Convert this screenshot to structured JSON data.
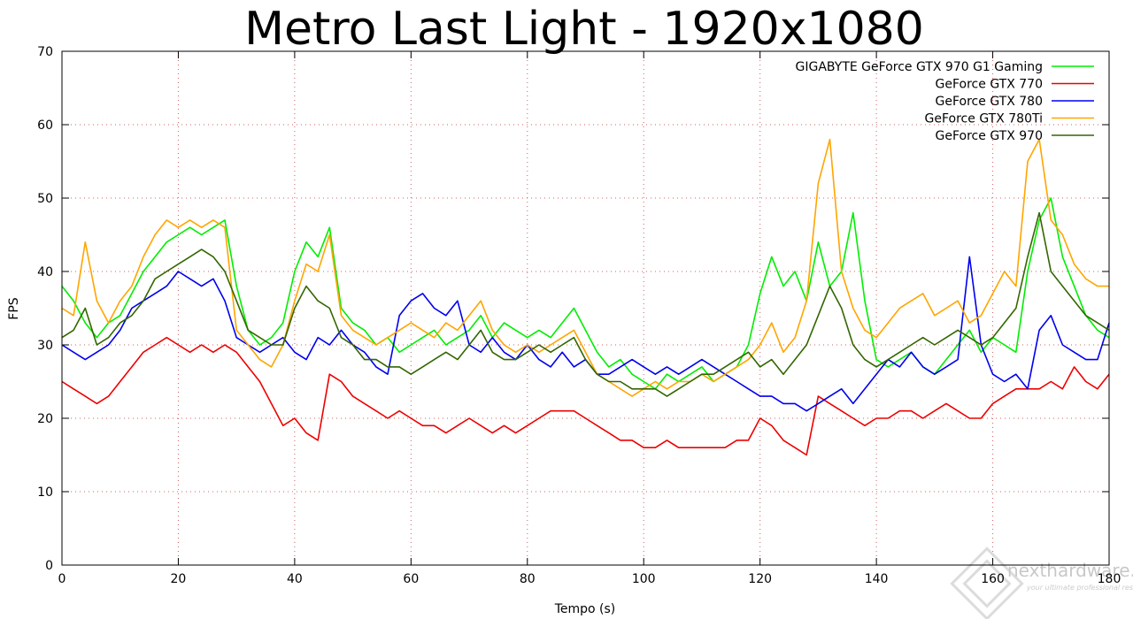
{
  "chart_data": {
    "type": "line",
    "title": "Metro Last Light - 1920x1080",
    "xlabel": "Tempo (s)",
    "ylabel": "FPS",
    "xlim": [
      0,
      180
    ],
    "ylim": [
      0,
      70
    ],
    "xticks": [
      0,
      20,
      40,
      60,
      80,
      100,
      120,
      140,
      160,
      180
    ],
    "yticks": [
      0,
      10,
      20,
      30,
      40,
      50,
      60,
      70
    ],
    "grid": true,
    "legend_position": "top-right",
    "series": [
      {
        "name": "GIGABYTE GeForce GTX 970 G1 Gaming",
        "color": "#00ee00",
        "x": [
          0,
          2,
          4,
          6,
          8,
          10,
          12,
          14,
          16,
          18,
          20,
          22,
          24,
          26,
          28,
          30,
          32,
          34,
          36,
          38,
          40,
          42,
          44,
          46,
          48,
          50,
          52,
          54,
          56,
          58,
          60,
          62,
          64,
          66,
          68,
          70,
          72,
          74,
          76,
          78,
          80,
          82,
          84,
          86,
          88,
          90,
          92,
          94,
          96,
          98,
          100,
          102,
          104,
          106,
          108,
          110,
          112,
          114,
          116,
          118,
          120,
          122,
          124,
          126,
          128,
          130,
          132,
          134,
          136,
          138,
          140,
          142,
          144,
          146,
          148,
          150,
          152,
          154,
          156,
          158,
          160,
          162,
          164,
          166,
          168,
          170,
          172,
          174,
          176,
          178,
          180
        ],
        "y": [
          38,
          36,
          33,
          31,
          33,
          34,
          37,
          40,
          42,
          44,
          45,
          46,
          45,
          46,
          47,
          38,
          32,
          30,
          31,
          33,
          40,
          44,
          42,
          46,
          35,
          33,
          32,
          30,
          31,
          29,
          30,
          31,
          32,
          30,
          31,
          32,
          34,
          31,
          33,
          32,
          31,
          32,
          31,
          33,
          35,
          32,
          29,
          27,
          28,
          26,
          25,
          24,
          26,
          25,
          26,
          27,
          25,
          26,
          27,
          30,
          37,
          42,
          38,
          40,
          36,
          44,
          38,
          40,
          48,
          36,
          28,
          27,
          28,
          29,
          27,
          26,
          28,
          30,
          32,
          29,
          31,
          30,
          29,
          40,
          47,
          50,
          42,
          38,
          34,
          32,
          31
        ]
      },
      {
        "name": "GeForce GTX 770",
        "color": "#ee0000",
        "x": [
          0,
          2,
          4,
          6,
          8,
          10,
          12,
          14,
          16,
          18,
          20,
          22,
          24,
          26,
          28,
          30,
          32,
          34,
          36,
          38,
          40,
          42,
          44,
          46,
          48,
          50,
          52,
          54,
          56,
          58,
          60,
          62,
          64,
          66,
          68,
          70,
          72,
          74,
          76,
          78,
          80,
          82,
          84,
          86,
          88,
          90,
          92,
          94,
          96,
          98,
          100,
          102,
          104,
          106,
          108,
          110,
          112,
          114,
          116,
          118,
          120,
          122,
          124,
          126,
          128,
          130,
          132,
          134,
          136,
          138,
          140,
          142,
          144,
          146,
          148,
          150,
          152,
          154,
          156,
          158,
          160,
          162,
          164,
          166,
          168,
          170,
          172,
          174,
          176,
          178,
          180
        ],
        "y": [
          25,
          24,
          23,
          22,
          23,
          25,
          27,
          29,
          30,
          31,
          30,
          29,
          30,
          29,
          30,
          29,
          27,
          25,
          22,
          19,
          20,
          18,
          17,
          26,
          25,
          23,
          22,
          21,
          20,
          21,
          20,
          19,
          19,
          18,
          19,
          20,
          19,
          18,
          19,
          18,
          19,
          20,
          21,
          21,
          21,
          20,
          19,
          18,
          17,
          17,
          16,
          16,
          17,
          16,
          16,
          16,
          16,
          16,
          17,
          17,
          20,
          19,
          17,
          16,
          15,
          23,
          22,
          21,
          20,
          19,
          20,
          20,
          21,
          21,
          20,
          21,
          22,
          21,
          20,
          20,
          22,
          23,
          24,
          24,
          24,
          25,
          24,
          27,
          25,
          24,
          26
        ]
      },
      {
        "name": "GeForce GTX 780",
        "color": "#0000ee",
        "x": [
          0,
          2,
          4,
          6,
          8,
          10,
          12,
          14,
          16,
          18,
          20,
          22,
          24,
          26,
          28,
          30,
          32,
          34,
          36,
          38,
          40,
          42,
          44,
          46,
          48,
          50,
          52,
          54,
          56,
          58,
          60,
          62,
          64,
          66,
          68,
          70,
          72,
          74,
          76,
          78,
          80,
          82,
          84,
          86,
          88,
          90,
          92,
          94,
          96,
          98,
          100,
          102,
          104,
          106,
          108,
          110,
          112,
          114,
          116,
          118,
          120,
          122,
          124,
          126,
          128,
          130,
          132,
          134,
          136,
          138,
          140,
          142,
          144,
          146,
          148,
          150,
          152,
          154,
          156,
          158,
          160,
          162,
          164,
          166,
          168,
          170,
          172,
          174,
          176,
          178,
          180
        ],
        "y": [
          30,
          29,
          28,
          29,
          30,
          32,
          35,
          36,
          37,
          38,
          40,
          39,
          38,
          39,
          36,
          31,
          30,
          29,
          30,
          31,
          29,
          28,
          31,
          30,
          32,
          30,
          29,
          27,
          26,
          34,
          36,
          37,
          35,
          34,
          36,
          30,
          29,
          31,
          29,
          28,
          30,
          28,
          27,
          29,
          27,
          28,
          26,
          26,
          27,
          28,
          27,
          26,
          27,
          26,
          27,
          28,
          27,
          26,
          25,
          24,
          23,
          23,
          22,
          22,
          21,
          22,
          23,
          24,
          22,
          24,
          26,
          28,
          27,
          29,
          27,
          26,
          27,
          28,
          42,
          30,
          26,
          25,
          26,
          24,
          32,
          34,
          30,
          29,
          28,
          28,
          33
        ]
      },
      {
        "name": "GeForce GTX 780Ti",
        "color": "#ffa500",
        "x": [
          0,
          2,
          4,
          6,
          8,
          10,
          12,
          14,
          16,
          18,
          20,
          22,
          24,
          26,
          28,
          30,
          32,
          34,
          36,
          38,
          40,
          42,
          44,
          46,
          48,
          50,
          52,
          54,
          56,
          58,
          60,
          62,
          64,
          66,
          68,
          70,
          72,
          74,
          76,
          78,
          80,
          82,
          84,
          86,
          88,
          90,
          92,
          94,
          96,
          98,
          100,
          102,
          104,
          106,
          108,
          110,
          112,
          114,
          116,
          118,
          120,
          122,
          124,
          126,
          128,
          130,
          132,
          134,
          136,
          138,
          140,
          142,
          144,
          146,
          148,
          150,
          152,
          154,
          156,
          158,
          160,
          162,
          164,
          166,
          168,
          170,
          172,
          174,
          176,
          178,
          180
        ],
        "y": [
          35,
          34,
          44,
          36,
          33,
          36,
          38,
          42,
          45,
          47,
          46,
          47,
          46,
          47,
          46,
          32,
          30,
          28,
          27,
          30,
          36,
          41,
          40,
          45,
          34,
          32,
          31,
          30,
          31,
          32,
          33,
          32,
          31,
          33,
          32,
          34,
          36,
          32,
          30,
          29,
          30,
          29,
          30,
          31,
          32,
          29,
          26,
          25,
          24,
          23,
          24,
          25,
          24,
          25,
          25,
          26,
          25,
          26,
          27,
          28,
          30,
          33,
          29,
          31,
          36,
          52,
          58,
          40,
          35,
          32,
          31,
          33,
          35,
          36,
          37,
          34,
          35,
          36,
          33,
          34,
          37,
          40,
          38,
          55,
          58,
          47,
          45,
          41,
          39,
          38,
          38
        ]
      },
      {
        "name": "GeForce GTX 970",
        "color": "#336600",
        "x": [
          0,
          2,
          4,
          6,
          8,
          10,
          12,
          14,
          16,
          18,
          20,
          22,
          24,
          26,
          28,
          30,
          32,
          34,
          36,
          38,
          40,
          42,
          44,
          46,
          48,
          50,
          52,
          54,
          56,
          58,
          60,
          62,
          64,
          66,
          68,
          70,
          72,
          74,
          76,
          78,
          80,
          82,
          84,
          86,
          88,
          90,
          92,
          94,
          96,
          98,
          100,
          102,
          104,
          106,
          108,
          110,
          112,
          114,
          116,
          118,
          120,
          122,
          124,
          126,
          128,
          130,
          132,
          134,
          136,
          138,
          140,
          142,
          144,
          146,
          148,
          150,
          152,
          154,
          156,
          158,
          160,
          162,
          164,
          166,
          168,
          170,
          172,
          174,
          176,
          178,
          180
        ],
        "y": [
          31,
          32,
          35,
          30,
          31,
          33,
          34,
          36,
          39,
          40,
          41,
          42,
          43,
          42,
          40,
          36,
          32,
          31,
          30,
          30,
          35,
          38,
          36,
          35,
          31,
          30,
          28,
          28,
          27,
          27,
          26,
          27,
          28,
          29,
          28,
          30,
          32,
          29,
          28,
          28,
          29,
          30,
          29,
          30,
          31,
          28,
          26,
          25,
          25,
          24,
          24,
          24,
          23,
          24,
          25,
          26,
          26,
          27,
          28,
          29,
          27,
          28,
          26,
          28,
          30,
          34,
          38,
          35,
          30,
          28,
          27,
          28,
          29,
          30,
          31,
          30,
          31,
          32,
          31,
          30,
          31,
          33,
          35,
          42,
          48,
          40,
          38,
          36,
          34,
          33,
          32
        ]
      }
    ]
  },
  "watermark": {
    "brand": "nexthardware.com",
    "tagline": "your ultimate professional resource"
  }
}
